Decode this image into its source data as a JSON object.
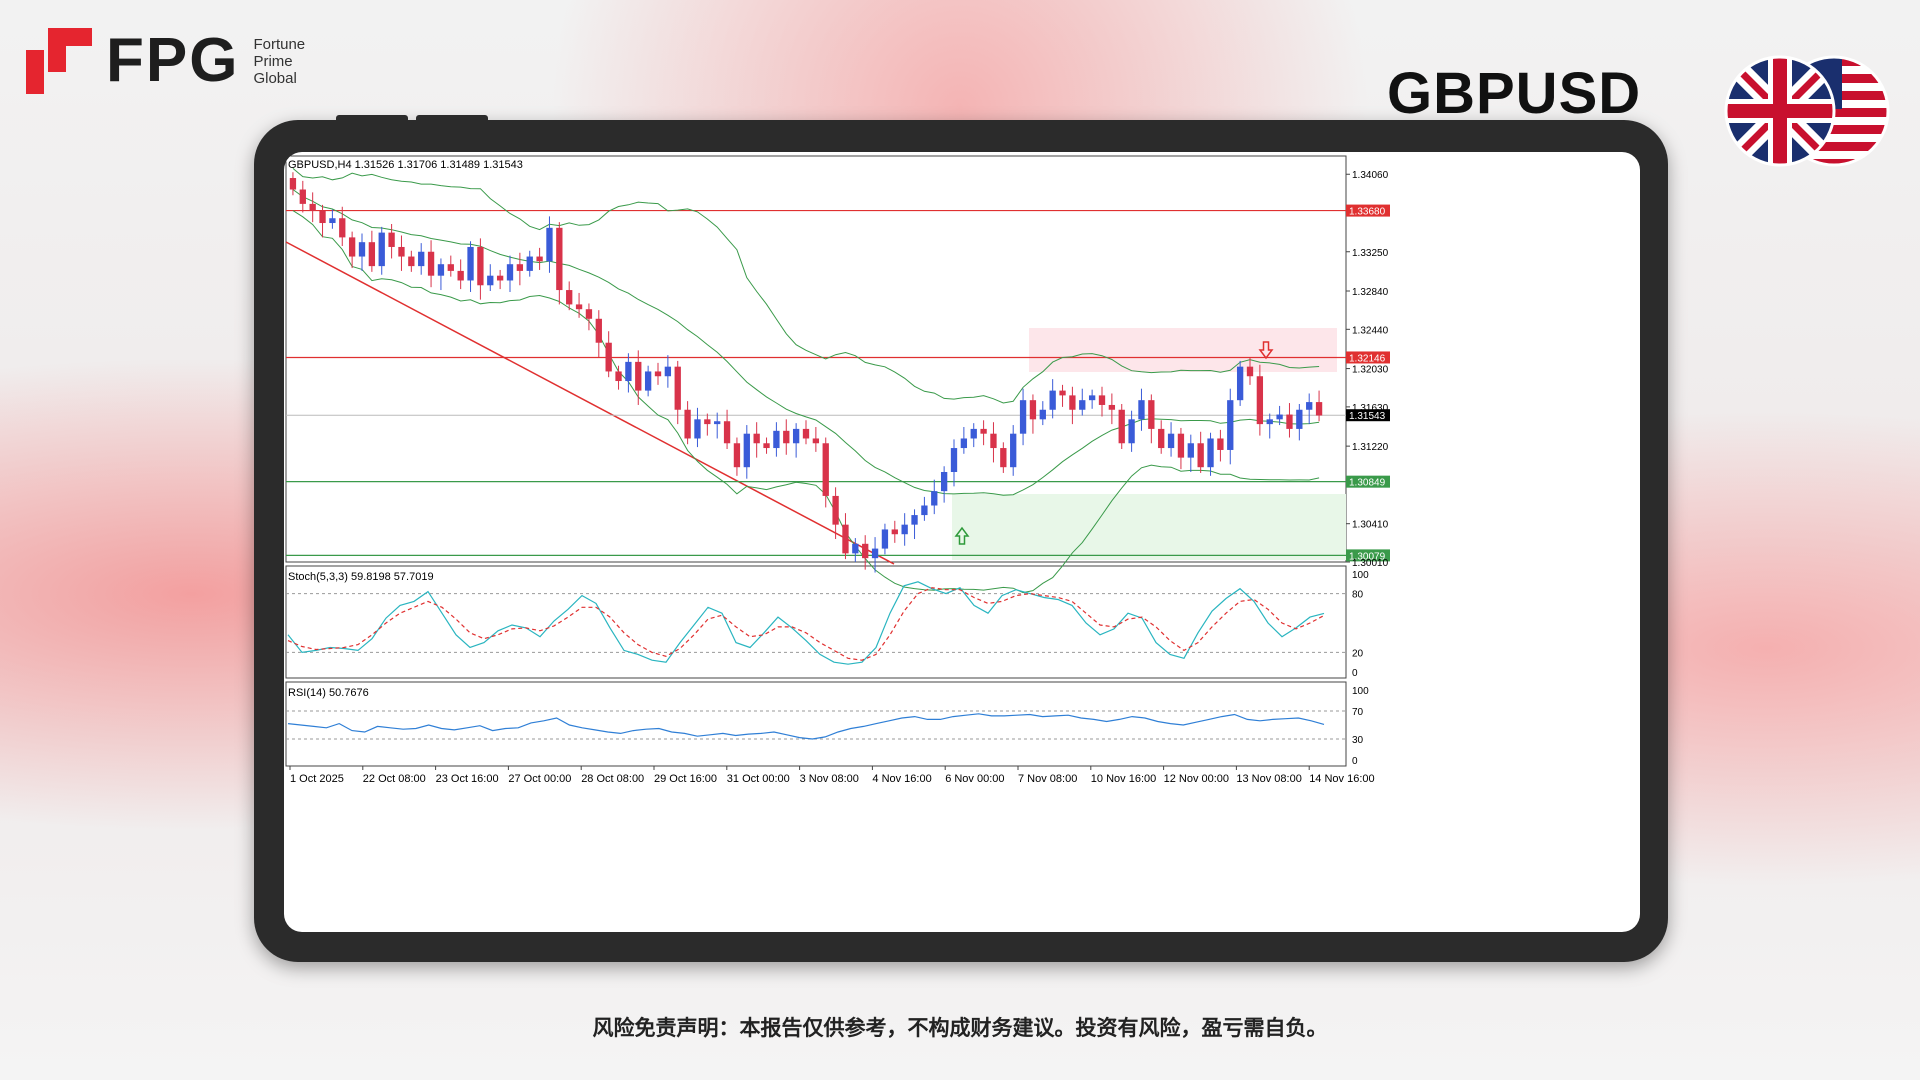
{
  "brand": {
    "word": "FPG",
    "line1": "Fortune",
    "line2": "Prime",
    "line3": "Global",
    "accent": "#e5252f"
  },
  "symbol": "GBPUSD",
  "disclaimer": "风险免责声明：本报告仅供参考，不构成财务建议。投资有风险，盈亏需自负。",
  "chart_data": {
    "type": "candlestick",
    "title": "GBPUSD,H4  1.31526 1.31706 1.31489 1.31543",
    "price_axis": {
      "ylim": [
        1.3001,
        1.3425
      ],
      "ticks": [
        "1.34060",
        "1.33250",
        "1.32840",
        "1.32440",
        "1.32030",
        "1.31630",
        "1.31220",
        "1.30410",
        "1.30010"
      ]
    },
    "levels": [
      {
        "label": "1.33680",
        "value": 1.3368,
        "color": "#e03030"
      },
      {
        "label": "1.32146",
        "value": 1.32146,
        "color": "#e03030"
      },
      {
        "label": "1.31543",
        "value": 1.31543,
        "color": "#000000"
      },
      {
        "label": "1.30849",
        "value": 1.30849,
        "color": "#3a9a4a"
      },
      {
        "label": "1.30079",
        "value": 1.30079,
        "color": "#3a9a4a"
      }
    ],
    "time_labels": [
      "1 Oct 2025",
      "22 Oct 08:00",
      "23 Oct 16:00",
      "27 Oct 00:00",
      "28 Oct 08:00",
      "29 Oct 16:00",
      "31 Oct 00:00",
      "3 Nov 08:00",
      "4 Nov 16:00",
      "6 Nov 00:00",
      "7 Nov 08:00",
      "10 Nov 16:00",
      "12 Nov 00:00",
      "13 Nov 08:00",
      "14 Nov 16:00"
    ],
    "closes": [
      1.339,
      1.3375,
      1.3368,
      1.3355,
      1.336,
      1.334,
      1.332,
      1.3335,
      1.331,
      1.3345,
      1.333,
      1.332,
      1.331,
      1.3325,
      1.33,
      1.3312,
      1.3305,
      1.3295,
      1.333,
      1.329,
      1.33,
      1.3295,
      1.3312,
      1.3305,
      1.332,
      1.3315,
      1.335,
      1.3285,
      1.327,
      1.3265,
      1.3255,
      1.323,
      1.32,
      1.319,
      1.321,
      1.318,
      1.32,
      1.3195,
      1.3205,
      1.316,
      1.313,
      1.315,
      1.3145,
      1.3148,
      1.3125,
      1.31,
      1.3135,
      1.3125,
      1.312,
      1.3138,
      1.3125,
      1.314,
      1.313,
      1.3125,
      1.307,
      1.304,
      1.301,
      1.302,
      1.3005,
      1.3015,
      1.3035,
      1.303,
      1.304,
      1.305,
      1.306,
      1.3075,
      1.3095,
      1.312,
      1.313,
      1.314,
      1.3135,
      1.312,
      1.31,
      1.3135,
      1.317,
      1.315,
      1.316,
      1.318,
      1.3175,
      1.316,
      1.317,
      1.3175,
      1.3165,
      1.316,
      1.3125,
      1.315,
      1.317,
      1.314,
      1.312,
      1.3135,
      1.311,
      1.3125,
      1.31,
      1.313,
      1.3118,
      1.317,
      1.3205,
      1.3195,
      1.3145,
      1.315,
      1.3155,
      1.314,
      1.316,
      1.3168,
      1.3154
    ],
    "stochastic": {
      "label": "Stoch(5,3,3) 59.8198 57.7019",
      "ylim": [
        0,
        100
      ],
      "levels": [
        "100",
        "80",
        "20",
        "0"
      ],
      "k": [
        38,
        20,
        22,
        25,
        24,
        22,
        34,
        55,
        68,
        72,
        82,
        60,
        38,
        25,
        30,
        42,
        48,
        45,
        36,
        52,
        64,
        78,
        70,
        45,
        22,
        18,
        12,
        10,
        30,
        48,
        66,
        60,
        30,
        25,
        40,
        56,
        45,
        32,
        18,
        10,
        8,
        10,
        25,
        60,
        88,
        92,
        85,
        80,
        86,
        68,
        60,
        78,
        84,
        80,
        76,
        74,
        68,
        50,
        38,
        44,
        60,
        55,
        30,
        18,
        14,
        40,
        62,
        75,
        85,
        72,
        50,
        36,
        45,
        56,
        59.8
      ],
      "d": [
        32,
        26,
        23,
        24,
        25,
        28,
        38,
        50,
        60,
        66,
        72,
        66,
        54,
        40,
        34,
        38,
        44,
        45,
        42,
        47,
        56,
        66,
        66,
        56,
        40,
        28,
        20,
        16,
        24,
        38,
        54,
        58,
        46,
        36,
        38,
        46,
        46,
        40,
        30,
        22,
        14,
        12,
        18,
        38,
        62,
        80,
        86,
        84,
        84,
        76,
        70,
        72,
        78,
        80,
        78,
        76,
        72,
        60,
        48,
        46,
        54,
        56,
        46,
        32,
        22,
        30,
        46,
        60,
        72,
        74,
        64,
        50,
        44,
        50,
        57.7
      ]
    },
    "rsi": {
      "label": "RSI(14) 50.7676",
      "ylim": [
        0,
        100
      ],
      "levels": [
        "100",
        "70",
        "30",
        "0"
      ],
      "values": [
        52,
        50,
        48,
        46,
        52,
        42,
        40,
        48,
        46,
        44,
        45,
        50,
        45,
        43,
        46,
        49,
        42,
        45,
        46,
        53,
        56,
        60,
        50,
        46,
        43,
        40,
        38,
        42,
        44,
        45,
        40,
        38,
        34,
        36,
        38,
        35,
        37,
        38,
        40,
        36,
        32,
        30,
        33,
        40,
        45,
        48,
        52,
        56,
        60,
        62,
        58,
        58,
        62,
        64,
        66,
        63,
        63,
        64,
        65,
        62,
        63,
        64,
        60,
        58,
        55,
        58,
        62,
        60,
        55,
        52,
        50,
        54,
        58,
        62,
        65,
        58,
        56,
        58,
        59,
        60,
        56,
        50.8
      ]
    },
    "annotations": [
      "up-arrow-signal",
      "down-arrow-signal"
    ]
  }
}
